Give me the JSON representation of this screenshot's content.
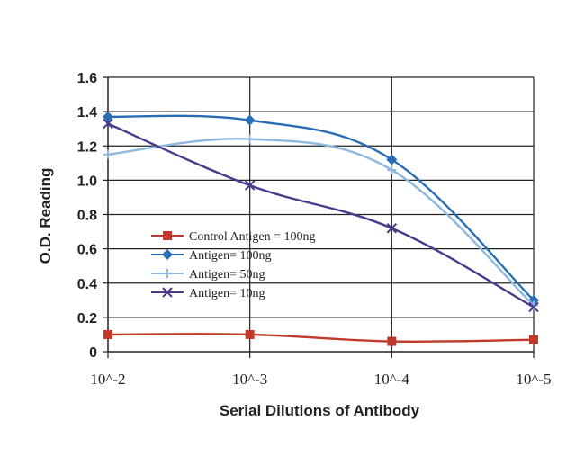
{
  "chart_data": {
    "type": "line",
    "title": "",
    "xlabel": "Serial Dilutions of Antibody",
    "ylabel": "O.D. Reading",
    "categories": [
      "10^-2",
      "10^-3",
      "10^-4",
      "10^-5"
    ],
    "yticks": [
      "0",
      "0.2",
      "0.4",
      "0.6",
      "0.8",
      "1.0",
      "1.2",
      "1.4",
      "1.6"
    ],
    "ylim": [
      0,
      1.6
    ],
    "grid": true,
    "legend_position": "center-left",
    "series": [
      {
        "name": "Control Antigen = 100ng",
        "values": [
          0.1,
          0.1,
          0.06,
          0.07
        ],
        "color": "#c0392b",
        "marker": "square"
      },
      {
        "name": "Antigen= 100ng",
        "values": [
          1.37,
          1.35,
          1.12,
          0.3
        ],
        "color": "#2a6db5",
        "marker": "diamond"
      },
      {
        "name": "Antigen= 50ng",
        "values": [
          1.15,
          1.24,
          1.06,
          0.27
        ],
        "color": "#8db8e0",
        "marker": "plus"
      },
      {
        "name": "Antigen= 10ng",
        "values": [
          1.33,
          0.97,
          0.72,
          0.26
        ],
        "color": "#4b3a8c",
        "marker": "x"
      }
    ]
  }
}
